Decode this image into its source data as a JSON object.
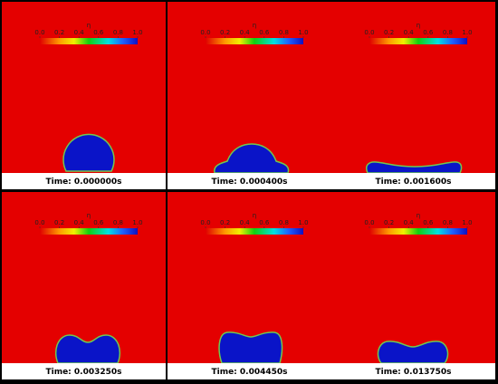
{
  "colorbar": {
    "label": "η",
    "ticks": [
      "0.0",
      "0.2",
      "0.4",
      "0.6",
      "0.8",
      "1.0"
    ]
  },
  "panels": [
    {
      "time": "Time: 0.000000s"
    },
    {
      "time": "Time: 0.000400s"
    },
    {
      "time": "Time: 0.001600s"
    },
    {
      "time": "Time: 0.003250s"
    },
    {
      "time": "Time: 0.004450s"
    },
    {
      "time": "Time: 0.013750s"
    }
  ]
}
